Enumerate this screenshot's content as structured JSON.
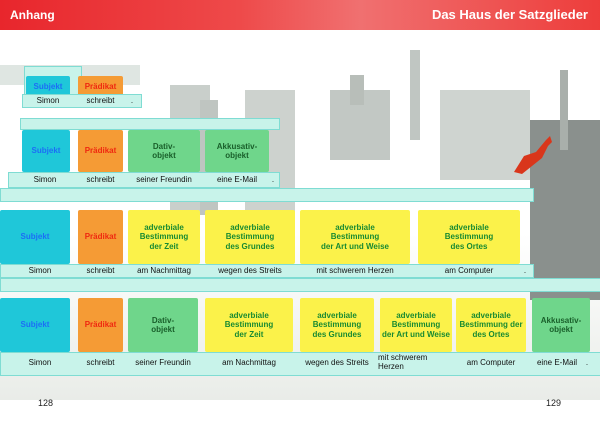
{
  "header": {
    "left_label": "Anhang",
    "right_title": "Das Haus der Satzglieder"
  },
  "rows": [
    {
      "cells": [
        {
          "label": "Subjekt",
          "kind": "blue"
        },
        {
          "label": "Prädikat",
          "kind": "orange"
        }
      ],
      "words": [
        "Simon",
        "schreibt",
        "."
      ]
    },
    {
      "cells": [
        {
          "label": "Subjekt",
          "kind": "blue"
        },
        {
          "label": "Prädikat",
          "kind": "orange"
        },
        {
          "label": "Dativ-\nobjekt",
          "kind": "green"
        },
        {
          "label": "Akkusativ-\nobjekt",
          "kind": "green"
        }
      ],
      "words": [
        "Simon",
        "schreibt",
        "seiner Freundin",
        "eine E-Mail",
        "."
      ]
    },
    {
      "cells": [
        {
          "label": "Subjekt",
          "kind": "blue"
        },
        {
          "label": "Prädikat",
          "kind": "orange"
        },
        {
          "label": "adverbiale\nBestimmung\nder Zeit",
          "kind": "yellow"
        },
        {
          "label": "adverbiale\nBestimmung\ndes Grundes",
          "kind": "yellow"
        },
        {
          "label": "adverbiale\nBestimmung\nder Art und Weise",
          "kind": "yellow"
        },
        {
          "label": "adverbiale\nBestimmung\ndes Ortes",
          "kind": "yellow"
        }
      ],
      "words": [
        "Simon",
        "schreibt",
        "am Nachmittag",
        "wegen des Streits",
        "mit schwerem Herzen",
        "am Computer",
        "."
      ]
    },
    {
      "cells": [
        {
          "label": "Subjekt",
          "kind": "blue"
        },
        {
          "label": "Prädikat",
          "kind": "orange"
        },
        {
          "label": "Dativ-\nobjekt",
          "kind": "green"
        },
        {
          "label": "adverbiale\nBestimmung\nder Zeit",
          "kind": "yellow"
        },
        {
          "label": "adverbiale\nBestimmung\ndes Grundes",
          "kind": "yellow"
        },
        {
          "label": "adverbiale\nBestimmung\nder Art und Weise",
          "kind": "yellow"
        },
        {
          "label": "adverbiale\nBestimmung der\ndes Ortes",
          "kind": "yellow"
        },
        {
          "label": "Akkusativ-\nobjekt",
          "kind": "green"
        }
      ],
      "words": [
        "Simon",
        "schreibt",
        "seiner Freundin",
        "am Nachmittag",
        "wegen des Streits",
        "mit schwerem Herzen",
        "am Computer",
        "eine E-Mail",
        "."
      ]
    }
  ],
  "footer": {
    "left_page": "128",
    "right_page": "129"
  },
  "colors": {
    "header_red": "#e8262c",
    "subject_blue": "#1fc7d9",
    "predicate_orange": "#f59b35",
    "object_green": "#6fd68b",
    "adverbial_yellow": "#fbf24a"
  }
}
